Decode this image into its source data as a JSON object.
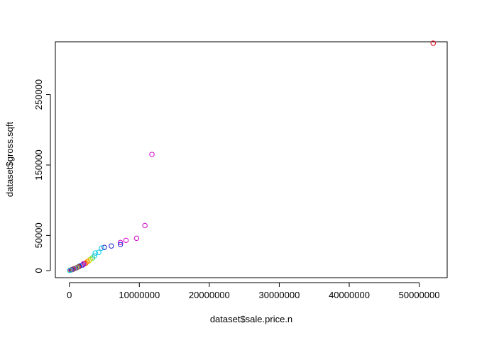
{
  "chart_data": {
    "type": "scatter",
    "title": "",
    "xlabel": "dataset$sale.price.n",
    "ylabel": "dataset$gross.sqft",
    "xlim": [
      -2000000,
      54000000
    ],
    "ylim": [
      -10000,
      325000
    ],
    "xticks": [
      0,
      10000000,
      20000000,
      30000000,
      40000000,
      50000000
    ],
    "xtick_labels": [
      "0",
      "10000000",
      "20000000",
      "30000000",
      "40000000",
      "50000000"
    ],
    "yticks": [
      0,
      50000,
      150000,
      250000
    ],
    "ytick_labels": [
      "0",
      "50000",
      "150000",
      "250000"
    ],
    "grid": false,
    "legend": "none",
    "point_style": "open-circle",
    "points": [
      {
        "x": 52000000,
        "y": 323000,
        "color": "#e0001a"
      },
      {
        "x": 11800000,
        "y": 165000,
        "color": "#d000d0"
      },
      {
        "x": 10800000,
        "y": 64000,
        "color": "#d000d0"
      },
      {
        "x": 9600000,
        "y": 46000,
        "color": "#d000d0"
      },
      {
        "x": 8100000,
        "y": 43000,
        "color": "#d000d0"
      },
      {
        "x": 7300000,
        "y": 40000,
        "color": "#d000d0"
      },
      {
        "x": 7300000,
        "y": 37000,
        "color": "#1a1acc"
      },
      {
        "x": 6000000,
        "y": 35000,
        "color": "#1a1acc"
      },
      {
        "x": 5000000,
        "y": 33000,
        "color": "#1a1acc"
      },
      {
        "x": 4600000,
        "y": 32000,
        "color": "#00c8e8"
      },
      {
        "x": 4200000,
        "y": 26000,
        "color": "#00c8e8"
      },
      {
        "x": 3700000,
        "y": 25000,
        "color": "#00c8e8"
      },
      {
        "x": 3600000,
        "y": 21000,
        "color": "#00c8e8"
      },
      {
        "x": 3300000,
        "y": 18000,
        "color": "#22cc44"
      },
      {
        "x": 3000000,
        "y": 16000,
        "color": "#aadd00"
      },
      {
        "x": 2800000,
        "y": 14000,
        "color": "#dddd00"
      },
      {
        "x": 2600000,
        "y": 13000,
        "color": "#ff8800"
      },
      {
        "x": 2400000,
        "y": 11000,
        "color": "#ff8800"
      },
      {
        "x": 2200000,
        "y": 10000,
        "color": "#e0001a"
      },
      {
        "x": 2000000,
        "y": 9500,
        "color": "#d000d0"
      },
      {
        "x": 1900000,
        "y": 8000,
        "color": "#1a1acc"
      },
      {
        "x": 1700000,
        "y": 7500,
        "color": "#d000d0"
      },
      {
        "x": 1500000,
        "y": 6500,
        "color": "#00c8e8"
      },
      {
        "x": 1400000,
        "y": 6000,
        "color": "#1a1acc"
      },
      {
        "x": 1300000,
        "y": 5500,
        "color": "#e0001a"
      },
      {
        "x": 1200000,
        "y": 5000,
        "color": "#22cc44"
      },
      {
        "x": 1100000,
        "y": 4500,
        "color": "#d000d0"
      },
      {
        "x": 1000000,
        "y": 4000,
        "color": "#aadd00"
      },
      {
        "x": 900000,
        "y": 3500,
        "color": "#1a1acc"
      },
      {
        "x": 800000,
        "y": 3200,
        "color": "#ff8800"
      },
      {
        "x": 700000,
        "y": 2800,
        "color": "#00c8e8"
      },
      {
        "x": 600000,
        "y": 2400,
        "color": "#d000d0"
      },
      {
        "x": 500000,
        "y": 2000,
        "color": "#e0001a"
      },
      {
        "x": 400000,
        "y": 1600,
        "color": "#22cc44"
      },
      {
        "x": 300000,
        "y": 1200,
        "color": "#1a1acc"
      },
      {
        "x": 200000,
        "y": 900,
        "color": "#d000d0"
      },
      {
        "x": 100000,
        "y": 600,
        "color": "#dddd00"
      },
      {
        "x": 50000,
        "y": 300,
        "color": "#00c8e8"
      }
    ]
  }
}
